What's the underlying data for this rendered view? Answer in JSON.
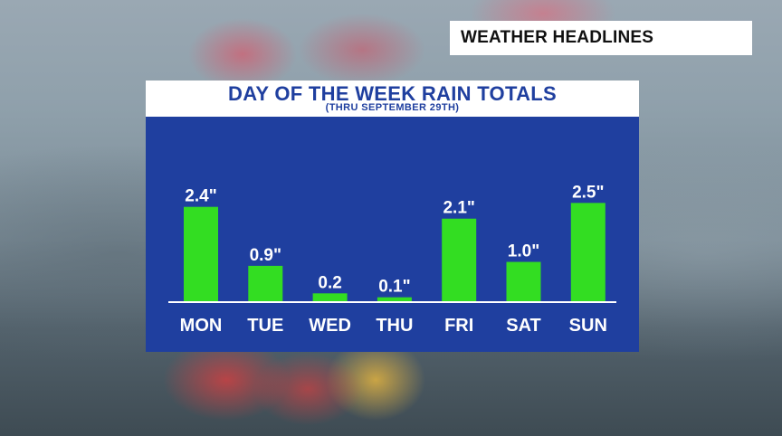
{
  "headline": "WEATHER HEADLINES",
  "colors": {
    "panel": "#1f3f9f",
    "bar": "#33dd22",
    "axis": "#ffffff",
    "text": "#ffffff",
    "title": "#1f3f9f"
  },
  "chart_data": {
    "type": "bar",
    "title": "DAY OF THE WEEK RAIN TOTALS",
    "subtitle": "(THRU SEPTEMBER 29TH)",
    "categories": [
      "MON",
      "TUE",
      "WED",
      "THU",
      "FRI",
      "SAT",
      "SUN"
    ],
    "values": [
      2.4,
      0.9,
      0.2,
      0.1,
      2.1,
      1.0,
      2.5
    ],
    "data_labels": [
      "2.4\"",
      "0.9\"",
      "0.2",
      "0.1\"",
      "2.1\"",
      "1.0\"",
      "2.5\""
    ],
    "ylim": [
      0,
      2.6
    ],
    "grid": false,
    "legend": "none"
  }
}
